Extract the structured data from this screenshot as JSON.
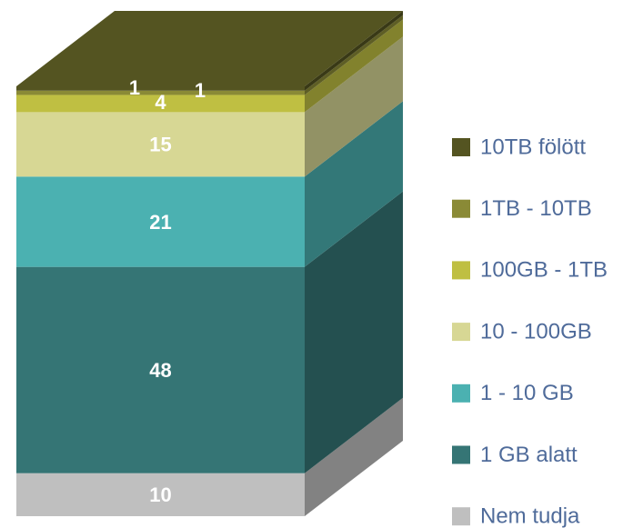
{
  "chart_data": {
    "type": "bar",
    "stacked": true,
    "categories": [
      null
    ],
    "ylim": [
      0,
      100
    ],
    "series": [
      {
        "name": "Nem tudja",
        "color": "#bfbfbf",
        "values": [
          10
        ]
      },
      {
        "name": "1 GB alatt",
        "color": "#357575",
        "values": [
          48
        ]
      },
      {
        "name": "1 - 10 GB",
        "color": "#4bb1b1",
        "values": [
          21
        ]
      },
      {
        "name": "10 - 100GB",
        "color": "#d7d794",
        "values": [
          15
        ]
      },
      {
        "name": "100GB - 1TB",
        "color": "#bfbf42",
        "values": [
          4
        ]
      },
      {
        "name": "1TB - 10TB",
        "color": "#8a8a36",
        "values": [
          1
        ]
      },
      {
        "name": "10TB fölött",
        "color": "#545421",
        "values": [
          1
        ]
      }
    ],
    "legend": "right"
  }
}
